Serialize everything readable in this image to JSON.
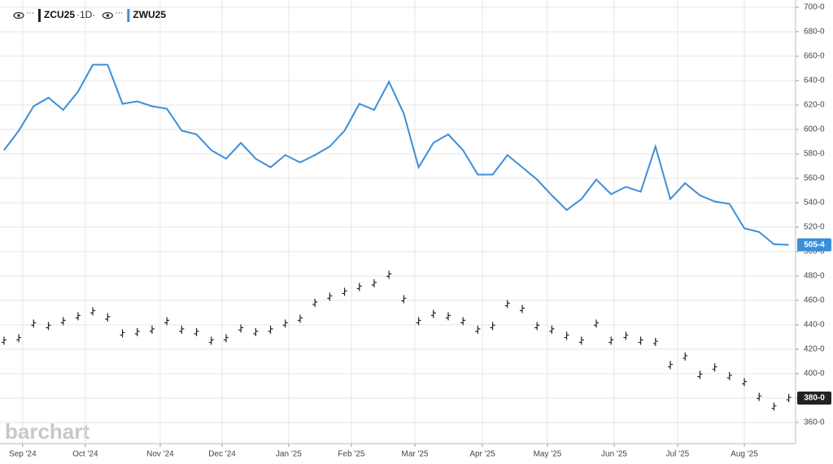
{
  "chart_data": {
    "type": "line",
    "interval": "·1D·",
    "watermark": "barchart",
    "x": [
      0,
      1,
      2,
      3,
      4,
      5,
      6,
      7,
      8,
      9,
      10,
      11,
      12,
      13,
      14,
      15,
      16,
      17,
      18,
      19,
      20,
      21,
      22,
      23,
      24,
      25,
      26,
      27,
      28,
      29,
      30,
      31,
      32,
      33,
      34,
      35,
      36,
      37,
      38,
      39,
      40,
      41,
      42,
      43,
      44,
      45,
      46,
      47,
      48,
      49,
      50,
      51,
      52,
      53
    ],
    "xlim": [
      -0.27,
      53.46
    ],
    "xticks": [
      {
        "value": 1.26,
        "label": "Sep '24"
      },
      {
        "value": 5.49,
        "label": "Oct '24"
      },
      {
        "value": 10.55,
        "label": "Nov '24"
      },
      {
        "value": 14.73,
        "label": "Dec '24"
      },
      {
        "value": 19.23,
        "label": "Jan '25"
      },
      {
        "value": 23.46,
        "label": "Feb '25"
      },
      {
        "value": 27.75,
        "label": "Mar '25"
      },
      {
        "value": 32.31,
        "label": "Apr '25"
      },
      {
        "value": 36.7,
        "label": "May '25"
      },
      {
        "value": 41.21,
        "label": "Jun '25"
      },
      {
        "value": 45.49,
        "label": "Jul '25"
      },
      {
        "value": 50.0,
        "label": "Aug '25"
      }
    ],
    "ylim": [
      342.7,
      706
    ],
    "yticks": [
      {
        "value": 360,
        "label": "360-0"
      },
      {
        "value": 380,
        "label": "380-0"
      },
      {
        "value": 400,
        "label": "400-0"
      },
      {
        "value": 420,
        "label": "420-0"
      },
      {
        "value": 440,
        "label": "440-0"
      },
      {
        "value": 460,
        "label": "460-0"
      },
      {
        "value": 480,
        "label": "480-0"
      },
      {
        "value": 500,
        "label": "500-0"
      },
      {
        "value": 520,
        "label": "520-0"
      },
      {
        "value": 540,
        "label": "540-0"
      },
      {
        "value": 560,
        "label": "560-0"
      },
      {
        "value": 580,
        "label": "580-0"
      },
      {
        "value": 600,
        "label": "600-0"
      },
      {
        "value": 620,
        "label": "620-0"
      },
      {
        "value": 640,
        "label": "640-0"
      },
      {
        "value": 660,
        "label": "660-0"
      },
      {
        "value": 680,
        "label": "680-0"
      },
      {
        "value": 700,
        "label": "700-0"
      }
    ],
    "grid": true,
    "series": [
      {
        "name": "ZCU25",
        "color": "#222222",
        "style": "bar",
        "last_label": "380-0",
        "values": [
          427,
          429,
          441,
          439,
          443,
          447,
          451,
          446,
          433,
          434,
          436,
          443,
          436,
          434,
          427,
          429,
          437,
          434,
          436,
          441,
          445,
          458,
          463,
          467,
          471,
          474,
          481,
          461,
          443,
          449,
          447,
          443,
          436,
          439,
          457,
          453,
          439,
          436,
          431,
          427,
          441,
          427,
          431,
          427,
          426,
          407,
          414,
          399,
          405,
          398,
          393,
          381,
          373,
          380
        ]
      },
      {
        "name": "ZWU25",
        "color": "#3b8fd9",
        "style": "line",
        "last_label": "505-4",
        "values": [
          583,
          599,
          619,
          626,
          616,
          631,
          653,
          653,
          621,
          623,
          619,
          617,
          599,
          596,
          583,
          576,
          589,
          576,
          569,
          579,
          573,
          579,
          586,
          599,
          621,
          616,
          639,
          613,
          569,
          589,
          596,
          583,
          563,
          563,
          579,
          569,
          559,
          546,
          534,
          543,
          559,
          547,
          553,
          549,
          586,
          543,
          556,
          546,
          541,
          539,
          519,
          516,
          506,
          505.5
        ]
      }
    ]
  }
}
